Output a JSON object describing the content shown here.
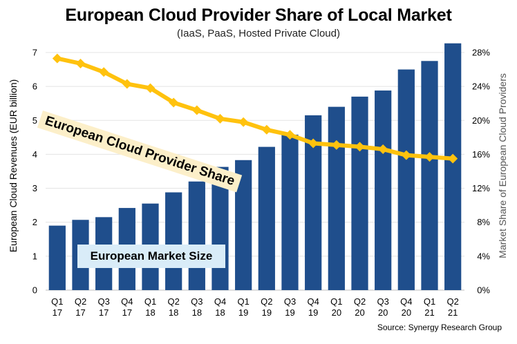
{
  "chart_data": {
    "type": "bar",
    "title": "European Cloud Provider Share of Local Market",
    "subtitle": "(IaaS, PaaS, Hosted Private Cloud)",
    "source": "Source: Synergy Research Group",
    "categories": [
      [
        "Q1",
        "17"
      ],
      [
        "Q2",
        "17"
      ],
      [
        "Q3",
        "17"
      ],
      [
        "Q4",
        "17"
      ],
      [
        "Q1",
        "18"
      ],
      [
        "Q2",
        "18"
      ],
      [
        "Q3",
        "18"
      ],
      [
        "Q4",
        "18"
      ],
      [
        "Q1",
        "19"
      ],
      [
        "Q2",
        "19"
      ],
      [
        "Q3",
        "19"
      ],
      [
        "Q4",
        "19"
      ],
      [
        "Q1",
        "20"
      ],
      [
        "Q2",
        "20"
      ],
      [
        "Q3",
        "20"
      ],
      [
        "Q4",
        "20"
      ],
      [
        "Q1",
        "21"
      ],
      [
        "Q2",
        "21"
      ]
    ],
    "series": [
      {
        "name": "European Market Size",
        "axis": "left",
        "color": "#1f4e8c",
        "values": [
          1.9,
          2.07,
          2.15,
          2.42,
          2.55,
          2.88,
          3.2,
          3.63,
          3.83,
          4.22,
          4.58,
          5.15,
          5.4,
          5.7,
          5.88,
          6.5,
          6.75,
          7.27
        ]
      },
      {
        "name": "European Cloud Provider Share",
        "axis": "right",
        "color": "#ffc20e",
        "values": [
          27.3,
          26.7,
          25.7,
          24.3,
          23.8,
          22.1,
          21.2,
          20.2,
          19.8,
          18.9,
          18.3,
          17.3,
          17.1,
          16.9,
          16.6,
          15.9,
          15.7,
          15.5
        ]
      }
    ],
    "ylabel": "European Cloud Revenues (EUR billion)",
    "ylim": [
      0,
      7
    ],
    "yticks": [
      "0",
      "1",
      "2",
      "3",
      "4",
      "5",
      "6",
      "7"
    ],
    "y2label": "Market Share of European Cloud Providers",
    "y2lim": [
      0,
      28
    ],
    "y2ticks": [
      "0%",
      "4%",
      "8%",
      "12%",
      "16%",
      "20%",
      "24%",
      "28%"
    ],
    "grid": true,
    "legend": "none"
  }
}
